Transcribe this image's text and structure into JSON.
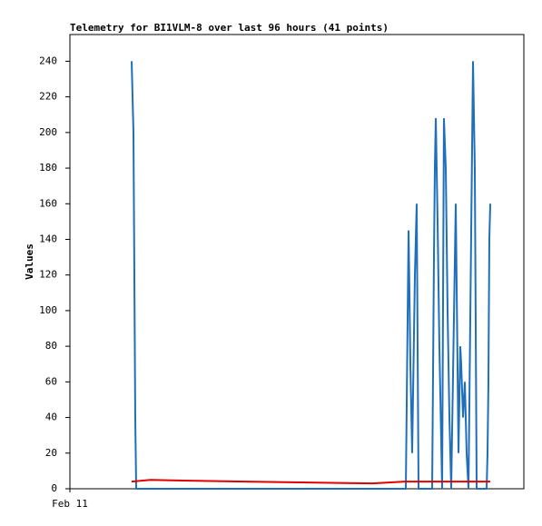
{
  "chart_data": {
    "type": "line",
    "title": "Telemetry for BI1VLM-8 over last 96 hours (41 points)",
    "y_label": "Values",
    "xlim": [
      0,
      96
    ],
    "xticks": [
      {
        "value": 0,
        "label": "Feb 11"
      }
    ],
    "ylim": [
      0,
      255
    ],
    "yticks": [
      0,
      20,
      40,
      60,
      80,
      100,
      120,
      140,
      160,
      180,
      200,
      220,
      240
    ],
    "series": [
      {
        "color": "#1f6fba",
        "x": [
          13.06,
          13.44,
          13.63,
          13.82,
          14.02,
          71.04,
          71.62,
          71.81,
          72.0,
          72.38,
          72.96,
          73.34,
          73.73,
          76.61,
          76.99,
          77.18,
          77.38,
          77.76,
          78.14,
          78.72,
          79.1,
          79.49,
          79.87,
          80.26,
          80.64,
          81.6,
          82.18,
          82.56,
          82.75,
          83.14,
          83.52,
          83.9,
          84.29,
          85.25,
          85.63,
          86.02,
          88.13,
          88.32,
          88.51,
          88.7,
          88.9
        ],
        "values": [
          240,
          200,
          120,
          40,
          0,
          0,
          145,
          110,
          70,
          20,
          120,
          160,
          0,
          0,
          130,
          180,
          208,
          150,
          80,
          0,
          208,
          180,
          100,
          40,
          0,
          160,
          20,
          80,
          70,
          40,
          60,
          20,
          0,
          240,
          180,
          0,
          0,
          20,
          60,
          140,
          160
        ]
      },
      {
        "color": "#e00000",
        "x": [
          13.06,
          17,
          24,
          37,
          50.5,
          64,
          70.8,
          88.9
        ],
        "values": [
          4,
          5,
          4.6,
          4,
          3.5,
          3,
          4,
          4
        ]
      }
    ]
  }
}
